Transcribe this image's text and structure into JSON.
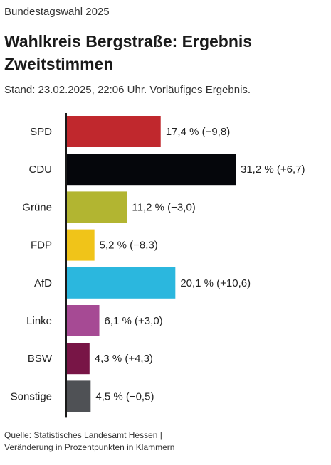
{
  "header": {
    "kicker": "Bundestagswahl 2025",
    "title": "Wahlkreis Bergstraße: Ergebnis Zweitstimmen",
    "subtitle": "Stand: 23.02.2025, 22:06 Uhr. Vorläufiges Ergebnis."
  },
  "footer": {
    "source": "Quelle: Statistisches Landesamt Hessen |",
    "note": "Veränderung in Prozentpunkten in Klammern"
  },
  "chart_data": {
    "type": "bar",
    "orientation": "horizontal",
    "title": "Wahlkreis Bergstraße: Ergebnis Zweitstimmen",
    "categories": [
      "SPD",
      "CDU",
      "Grüne",
      "FDP",
      "AfD",
      "Linke",
      "BSW",
      "Sonstige"
    ],
    "values": [
      17.4,
      31.2,
      11.2,
      5.2,
      20.1,
      6.1,
      4.3,
      4.5
    ],
    "changes": [
      -9.8,
      6.7,
      -3.0,
      -8.3,
      10.6,
      3.0,
      4.3,
      -0.5
    ],
    "value_labels": [
      "17,4 % (−9,8)",
      "31,2 % (+6,7)",
      "11,2 % (−3,0)",
      "5,2 % (−8,3)",
      "20,1 % (+10,6)",
      "6,1 % (+3,0)",
      "4,3 % (+4,3)",
      "4,5 % (−0,5)"
    ],
    "colors": [
      "#c0282d",
      "#05060b",
      "#b2b531",
      "#f0c419",
      "#2bb7de",
      "#a64a94",
      "#781546",
      "#4f5155"
    ],
    "xlim": [
      0,
      31.2
    ],
    "grid": false,
    "legend": "none"
  }
}
